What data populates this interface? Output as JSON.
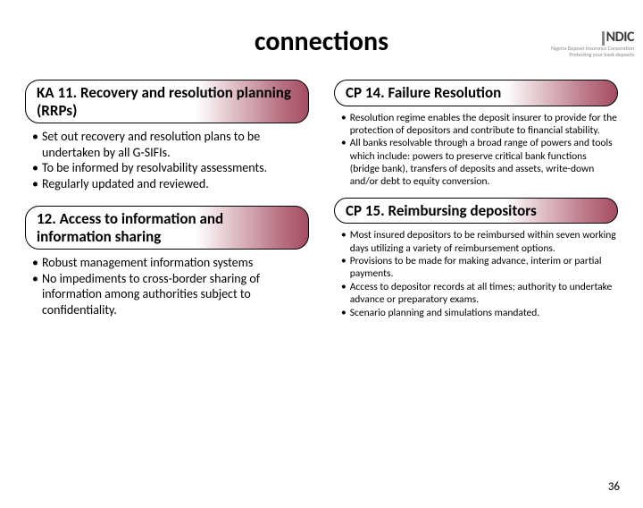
{
  "logo": {
    "brand": "NDIC",
    "sub1": "Nigeria Deposit Insurance Corporation",
    "sub2": "Protecting your bank deposits"
  },
  "title": "connections",
  "left": {
    "sections": [
      {
        "heading": "KA 11. Recovery and resolution planning (RRPs)",
        "bullets": [
          "Set out recovery and resolution plans to be undertaken by all G-SIFIs.",
          "To be informed by resolvability assessments.",
          "Regularly updated and reviewed."
        ]
      },
      {
        "heading": "12. Access to information and information sharing",
        "bullets": [
          "Robust management information systems",
          "No impediments to cross-border sharing of information among authorities subject to confidentiality."
        ]
      }
    ]
  },
  "right": {
    "sections": [
      {
        "heading": "CP 14.  Failure Resolution",
        "bullets": [
          "Resolution regime enables the deposit insurer to provide for the protection of depositors and contribute to financial stability.",
          "All banks resolvable through a broad range of powers and tools which include: powers to preserve critical bank functions (bridge bank), transfers of deposits and assets, write-down and/or debt to equity conversion."
        ]
      },
      {
        "heading": "CP 15.  Reimbursing depositors",
        "bullets": [
          "Most insured depositors to be reimbursed within seven working days utilizing a variety of reimbursement options.",
          "Provisions to be made for making advance, interim or partial payments.",
          "Access to depositor records at all times; authority to undertake advance or preparatory exams.",
          "Scenario planning and simulations mandated."
        ]
      }
    ]
  },
  "pageNumber": "36",
  "style": {
    "headingBorderColor": "#000000",
    "headingGradientEnd": "#802038",
    "background": "#ffffff",
    "titleFontSize": 30,
    "headingFontSize": 17,
    "leftBulletFontSize": 14,
    "rightBulletFontSize": 11.5
  }
}
